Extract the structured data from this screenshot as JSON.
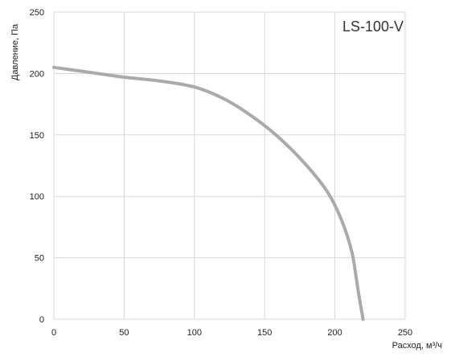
{
  "chart_data": {
    "type": "line",
    "title": "LS-100-V",
    "xlabel": "Расход, м³/ч",
    "ylabel": "Давление, Па",
    "xlim": [
      0,
      250
    ],
    "ylim": [
      0,
      250
    ],
    "xticks": [
      0,
      50,
      100,
      150,
      200,
      250
    ],
    "yticks": [
      0,
      50,
      100,
      150,
      200,
      250
    ],
    "grid": true,
    "series": [
      {
        "color": "#aaaaaa",
        "x": [
          0,
          25,
          50,
          75,
          100,
          120,
          140,
          160,
          180,
          195,
          205,
          212,
          215,
          217,
          219,
          220
        ],
        "y": [
          205,
          201,
          197,
          194,
          189,
          180,
          166,
          148,
          125,
          103,
          80,
          55,
          35,
          20,
          7,
          0
        ]
      }
    ]
  }
}
